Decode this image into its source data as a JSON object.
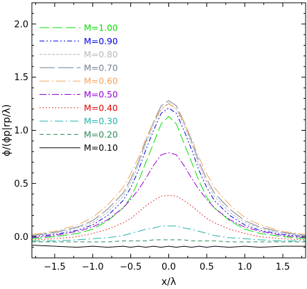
{
  "chart_data": {
    "type": "line",
    "xlabel": "x/λ",
    "ylabel": "ϕ/(ϕp|rp/λ)",
    "xlim": [
      -1.8,
      1.8
    ],
    "ylim": [
      -0.2,
      2.2
    ],
    "x_ticks": [
      -1.5,
      -1.0,
      -0.5,
      0.0,
      0.5,
      1.0,
      1.5
    ],
    "x_tick_labels": [
      "−1.5",
      "−1.0",
      "−0.5",
      "0.0",
      "0.5",
      "1.0",
      "1.5"
    ],
    "y_ticks": [
      0.0,
      0.5,
      1.0,
      1.5,
      2.0
    ],
    "y_tick_labels": [
      "0.0",
      "0.5",
      "1.0",
      "1.5",
      "2.0"
    ],
    "grid": false,
    "legend_position": "top-left",
    "x": [
      -1.8,
      -1.5,
      -1.2,
      -1.0,
      -0.8,
      -0.6,
      -0.5,
      -0.4,
      -0.3,
      -0.2,
      -0.1,
      0.0,
      0.1,
      0.2,
      0.3,
      0.4,
      0.5,
      0.6,
      0.8,
      1.0,
      1.2,
      1.5,
      1.8
    ],
    "series": [
      {
        "name": "M=1.00",
        "color": "#00e000",
        "dash": "14,5",
        "values": [
          -0.02,
          0.0,
          0.03,
          0.07,
          0.15,
          0.27,
          0.37,
          0.52,
          0.7,
          0.88,
          1.06,
          1.13,
          1.06,
          0.88,
          0.7,
          0.52,
          0.37,
          0.27,
          0.15,
          0.07,
          0.03,
          0.0,
          -0.02
        ]
      },
      {
        "name": "M=0.90",
        "color": "#0000e0",
        "dash": "7,3,2,3,2,3",
        "values": [
          0.0,
          0.02,
          0.06,
          0.11,
          0.2,
          0.34,
          0.46,
          0.62,
          0.82,
          1.0,
          1.16,
          1.21,
          1.16,
          1.0,
          0.82,
          0.62,
          0.46,
          0.34,
          0.2,
          0.11,
          0.06,
          0.02,
          0.0
        ]
      },
      {
        "name": "M=0.80",
        "color": "#b8b8b8",
        "dash": "4,2",
        "values": [
          0.01,
          0.03,
          0.08,
          0.13,
          0.23,
          0.38,
          0.51,
          0.67,
          0.87,
          1.05,
          1.2,
          1.26,
          1.2,
          1.05,
          0.87,
          0.67,
          0.51,
          0.38,
          0.23,
          0.13,
          0.08,
          0.03,
          0.01
        ]
      },
      {
        "name": "M=0.70",
        "color": "#708090",
        "dash": "22,5",
        "values": [
          0.01,
          0.04,
          0.09,
          0.15,
          0.26,
          0.41,
          0.54,
          0.7,
          0.9,
          1.08,
          1.23,
          1.28,
          1.23,
          1.08,
          0.9,
          0.7,
          0.54,
          0.41,
          0.26,
          0.15,
          0.09,
          0.04,
          0.01
        ]
      },
      {
        "name": "M=0.60",
        "color": "#f4a460",
        "dash": "14,4,2,4",
        "values": [
          0.02,
          0.05,
          0.11,
          0.18,
          0.3,
          0.46,
          0.59,
          0.74,
          0.92,
          1.08,
          1.2,
          1.25,
          1.2,
          1.08,
          0.92,
          0.74,
          0.59,
          0.46,
          0.3,
          0.18,
          0.11,
          0.05,
          0.02
        ]
      },
      {
        "name": "M=0.50",
        "color": "#9400d3",
        "dash": "10,3,2,3",
        "values": [
          -0.01,
          0.01,
          0.05,
          0.09,
          0.16,
          0.27,
          0.35,
          0.44,
          0.55,
          0.67,
          0.77,
          0.79,
          0.77,
          0.67,
          0.55,
          0.44,
          0.35,
          0.27,
          0.16,
          0.09,
          0.05,
          0.01,
          -0.01
        ]
      },
      {
        "name": "M=0.40",
        "color": "#e00000",
        "dash": "1.5,3",
        "values": [
          -0.03,
          -0.02,
          0.0,
          0.03,
          0.07,
          0.13,
          0.17,
          0.23,
          0.29,
          0.34,
          0.38,
          0.39,
          0.38,
          0.34,
          0.29,
          0.23,
          0.17,
          0.13,
          0.07,
          0.03,
          0.0,
          -0.02,
          -0.03
        ]
      },
      {
        "name": "M=0.30",
        "color": "#20b2aa",
        "dash": "12,4,2,4",
        "values": [
          -0.04,
          -0.04,
          -0.03,
          -0.02,
          -0.01,
          0.01,
          0.03,
          0.05,
          0.07,
          0.08,
          0.1,
          0.1,
          0.1,
          0.08,
          0.07,
          0.05,
          0.03,
          0.01,
          -0.01,
          -0.02,
          -0.03,
          -0.04,
          -0.04
        ]
      },
      {
        "name": "M=0.20",
        "color": "#2e8b57",
        "dash": "6,4",
        "values": [
          -0.05,
          -0.05,
          -0.05,
          -0.05,
          -0.05,
          -0.04,
          -0.04,
          -0.04,
          -0.04,
          -0.03,
          -0.03,
          -0.03,
          -0.03,
          -0.03,
          -0.04,
          -0.04,
          -0.04,
          -0.04,
          -0.05,
          -0.05,
          -0.05,
          -0.05,
          -0.05
        ]
      },
      {
        "name": "M=0.10",
        "color": "#000000",
        "dash": "",
        "values": [
          -0.08,
          -0.09,
          -0.1,
          -0.09,
          -0.1,
          -0.09,
          -0.1,
          -0.09,
          -0.1,
          -0.09,
          -0.1,
          -0.09,
          -0.1,
          -0.09,
          -0.1,
          -0.09,
          -0.1,
          -0.09,
          -0.1,
          -0.09,
          -0.1,
          -0.09,
          -0.09
        ]
      }
    ]
  }
}
